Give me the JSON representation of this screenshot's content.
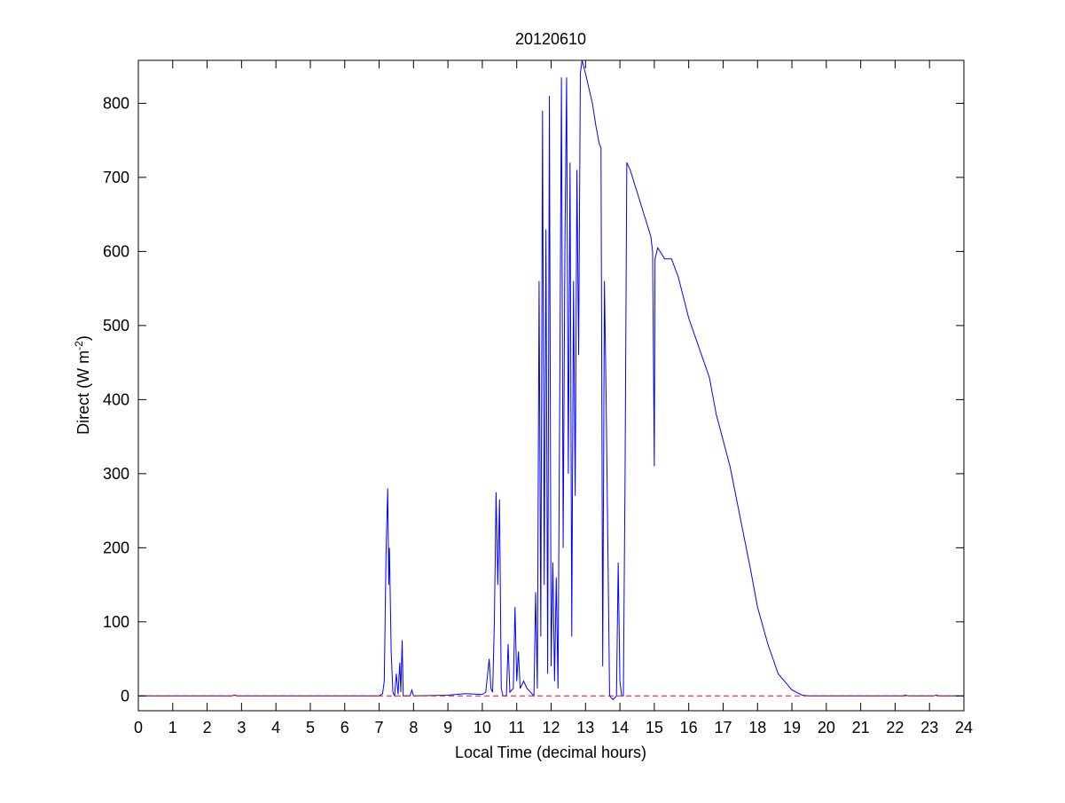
{
  "chart_data": {
    "type": "line",
    "title": "20120610",
    "xlabel": "Local Time (decimal hours)",
    "ylabel": [
      "Direct (W m",
      "-2",
      ")"
    ],
    "xlim": [
      0,
      24
    ],
    "ylim": [
      -20,
      858
    ],
    "xticks": [
      0,
      1,
      2,
      3,
      4,
      5,
      6,
      7,
      8,
      9,
      10,
      11,
      12,
      13,
      14,
      15,
      16,
      17,
      18,
      19,
      20,
      21,
      22,
      23,
      24
    ],
    "yticks": [
      0,
      100,
      200,
      300,
      400,
      500,
      600,
      700,
      800
    ],
    "series": [
      {
        "color": "#0000ff",
        "dash": false,
        "x": [
          0,
          2.7,
          2.8,
          2.9,
          6.0,
          7.0,
          7.1,
          7.15,
          7.2,
          7.25,
          7.28,
          7.3,
          7.35,
          7.4,
          7.45,
          7.5,
          7.55,
          7.6,
          7.63,
          7.67,
          7.7,
          7.9,
          7.95,
          8.0,
          9.0,
          9.5,
          10.0,
          10.1,
          10.2,
          10.25,
          10.3,
          10.35,
          10.4,
          10.45,
          10.5,
          10.55,
          10.6,
          10.7,
          10.75,
          10.8,
          10.9,
          10.95,
          11.0,
          11.05,
          11.1,
          11.2,
          11.3,
          11.4,
          11.5,
          11.55,
          11.6,
          11.65,
          11.7,
          11.75,
          11.8,
          11.85,
          11.9,
          11.95,
          12.0,
          12.05,
          12.1,
          12.15,
          12.2,
          12.25,
          12.3,
          12.35,
          12.4,
          12.45,
          12.5,
          12.55,
          12.6,
          12.65,
          12.7,
          12.75,
          12.8,
          12.85,
          12.9,
          13.0,
          13.1,
          13.2,
          13.3,
          13.4,
          13.45,
          13.5,
          13.55,
          13.6,
          13.7,
          13.8,
          13.9,
          13.95,
          14.0,
          14.05,
          14.1,
          14.15,
          14.2,
          14.3,
          14.5,
          14.7,
          14.9,
          14.95,
          15.0,
          15.02,
          15.1,
          15.3,
          15.5,
          15.7,
          16.0,
          16.3,
          16.6,
          16.8,
          17.0,
          17.2,
          17.5,
          17.8,
          18.0,
          18.3,
          18.6,
          19.0,
          19.3,
          19.5,
          22.2,
          22.3,
          22.4,
          23.1,
          23.2,
          23.3,
          24
        ],
        "values": [
          0,
          0,
          1,
          0,
          0,
          0,
          3,
          20,
          190,
          280,
          150,
          200,
          60,
          5,
          0,
          30,
          2,
          45,
          5,
          75,
          0,
          0,
          8,
          0,
          1,
          3,
          2,
          5,
          50,
          10,
          5,
          100,
          275,
          150,
          265,
          10,
          0,
          0,
          70,
          5,
          10,
          120,
          20,
          60,
          10,
          20,
          10,
          5,
          0,
          140,
          10,
          560,
          80,
          790,
          150,
          630,
          30,
          810,
          40,
          180,
          20,
          160,
          10,
          400,
          835,
          200,
          600,
          835,
          300,
          720,
          80,
          560,
          270,
          710,
          460,
          840,
          858,
          840,
          820,
          800,
          770,
          745,
          740,
          40,
          560,
          400,
          0,
          -5,
          0,
          180,
          20,
          0,
          0,
          300,
          720,
          710,
          680,
          650,
          620,
          600,
          310,
          590,
          605,
          590,
          590,
          565,
          510,
          470,
          430,
          380,
          345,
          310,
          240,
          170,
          120,
          70,
          30,
          8,
          1,
          0,
          0,
          1,
          0,
          0,
          1,
          0,
          0
        ]
      },
      {
        "color": "#ff0000",
        "dash": true,
        "x": [
          0,
          24
        ],
        "values": [
          0,
          0
        ]
      }
    ]
  }
}
